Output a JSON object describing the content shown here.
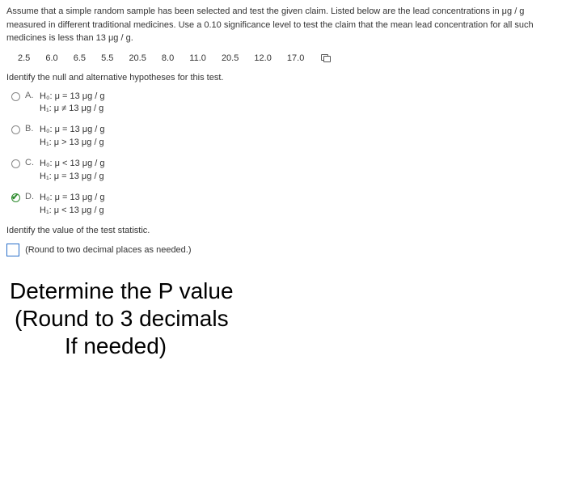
{
  "intro": "Assume that a simple random sample has been selected and test the given claim. Listed below are the lead concentrations in μg / g measured in different traditional medicines. Use a 0.10 significance level to test the claim that the mean lead concentration for all such medicines is less than 13 μg / g.",
  "data_values": [
    "2.5",
    "6.0",
    "6.5",
    "5.5",
    "20.5",
    "8.0",
    "11.0",
    "20.5",
    "12.0",
    "17.0"
  ],
  "q1_label": "Identify the null and alternative hypotheses for this test.",
  "options": [
    {
      "letter": "A.",
      "h0": "H₀: μ = 13 μg / g",
      "h1": "H₁: μ ≠ 13 μg / g",
      "selected": false
    },
    {
      "letter": "B.",
      "h0": "H₀: μ = 13 μg / g",
      "h1": "H₁: μ > 13 μg / g",
      "selected": false
    },
    {
      "letter": "C.",
      "h0": "H₀: μ < 13 μg / g",
      "h1": "H₁: μ = 13 μg / g",
      "selected": false
    },
    {
      "letter": "D.",
      "h0": "H₀: μ = 13 μg / g",
      "h1": "H₁: μ < 13 μg / g",
      "selected": true
    }
  ],
  "q2_label": "Identify the value of the test statistic.",
  "round_note": "(Round to two decimal places as needed.)",
  "big": {
    "l1": "Determine the P value",
    "l2": "(Round to 3 decimals",
    "l3": "If needed)"
  },
  "style": {
    "body_font_size": 11,
    "big_font_size": 28,
    "accent_color": "#2a6fc9",
    "selected_color": "#2e8b2e",
    "text_color": "#333333",
    "background_color": "#ffffff"
  }
}
